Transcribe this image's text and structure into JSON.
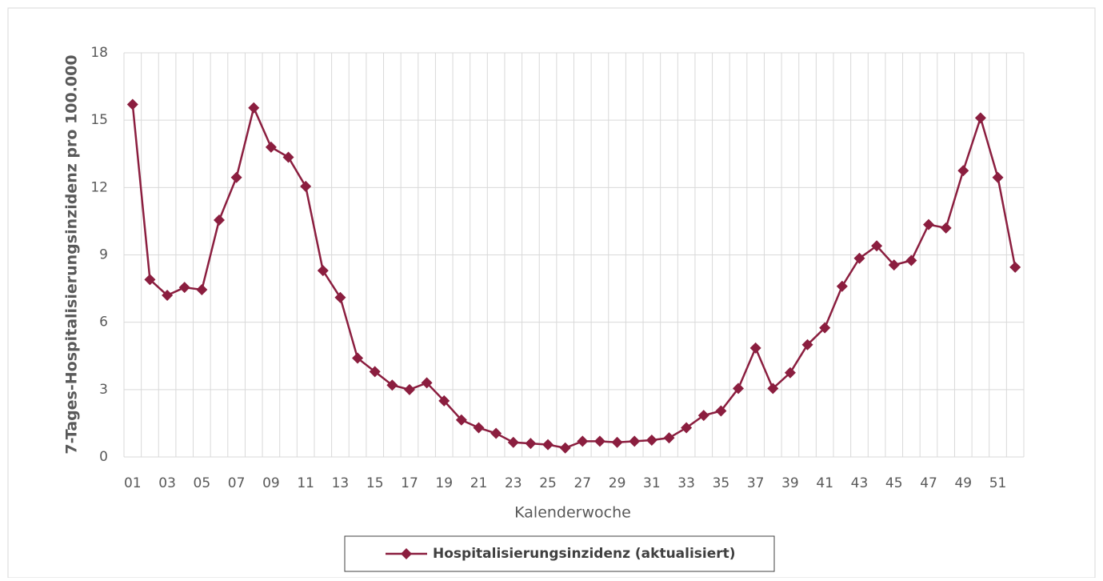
{
  "chart_data": {
    "type": "line",
    "y_label": "7-Tages-Hospitalisierungsinzidenz pro 100.000",
    "x_label": "Kalenderwoche",
    "categories": [
      "01",
      null,
      "03",
      null,
      "05",
      null,
      "07",
      null,
      "09",
      null,
      "11",
      null,
      "13",
      null,
      "15",
      null,
      "17",
      null,
      "19",
      null,
      "21",
      null,
      "23",
      null,
      "25",
      null,
      "27",
      null,
      "29",
      null,
      "31",
      null,
      "33",
      null,
      "35",
      null,
      "37",
      null,
      "39",
      null,
      "41",
      null,
      "43",
      null,
      "45",
      null,
      "47",
      null,
      "49",
      null,
      "51",
      null
    ],
    "series": [
      {
        "name": "Hospitalisierungsinzidenz (aktualisiert)",
        "color": "#8b1e3f",
        "values": [
          15.7,
          7.9,
          7.2,
          7.55,
          7.45,
          10.55,
          12.45,
          15.55,
          13.8,
          13.35,
          12.05,
          8.3,
          7.1,
          4.4,
          3.8,
          3.2,
          3.0,
          3.3,
          2.5,
          1.65,
          1.3,
          1.05,
          0.65,
          0.6,
          0.55,
          0.4,
          0.7,
          0.7,
          0.65,
          0.7,
          0.75,
          0.85,
          1.3,
          1.85,
          2.05,
          3.05,
          4.85,
          3.05,
          3.75,
          5.0,
          5.75,
          7.6,
          8.85,
          9.4,
          8.55,
          8.75,
          10.35,
          10.2,
          12.75,
          15.1,
          12.45,
          8.45
        ]
      }
    ],
    "ylim": [
      0,
      18
    ],
    "yticks": [
      0,
      3,
      6,
      9,
      12,
      15,
      18
    ],
    "grid": true,
    "legend": "bottom"
  }
}
